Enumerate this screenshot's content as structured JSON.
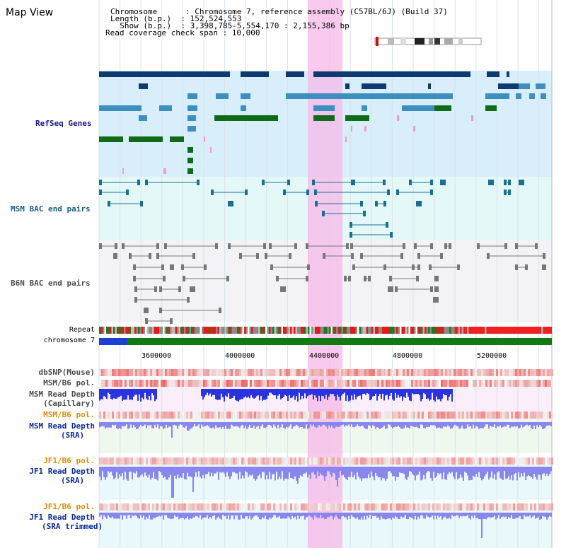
{
  "app": {
    "title": "Map View"
  },
  "info": {
    "line1": "Chromosome      : Chromosome 7, reference assembly (C57BL/6J) (Build 37)",
    "line2": "Length (b.p.)  : 152,524,553",
    "line3": "  Show (b.p.)  : 3,398,785-5,554,170 : 2,155,386 bp",
    "line4": "Read coverage check span : 10,000"
  },
  "tracks": {
    "refseq": "RefSeq Genes",
    "msm_bac": "MSM BAC end pairs",
    "b6n_bac": "B6N BAC end pairs",
    "repeat": "Repeat",
    "chromosome": "chromosome 7",
    "dbsnp": "dbSNP(Mouse)",
    "msm_b6_pol_1": "MSM/B6 pol.",
    "msm_depth_cap_1": "MSM Read Depth",
    "msm_depth_cap_2": "(Capillary)",
    "msm_b6_pol_2": "MSM/B6 pol.",
    "msm_depth_sra_1": "MSM Read Depth",
    "msm_depth_sra_2": "(SRA)",
    "jf1_pol_1": "JF1/B6 pol.",
    "jf1_depth_1": "JF1 Read Depth",
    "jf1_depth_2": "(SRA)",
    "jf1_pol_2": "JF1/B6 pol.",
    "jf1_trim_1": "JF1 Read Depth",
    "jf1_trim_2": "(SRA trimmed)"
  },
  "ruler": {
    "ticks": [
      "3600000",
      "4000000",
      "4400000",
      "4800000",
      "5200000"
    ]
  },
  "colors": {
    "highlight": "#f7b8e8",
    "refseq_bg": "#d8eefa",
    "msm_bac_bg": "#e4f8f8",
    "b6n_bac_bg": "#f3f3f5",
    "gene_dark": "#0f3a6e",
    "gene_mid": "#3d8fbf",
    "gene_green": "#0f6b17",
    "gene_pink": "#f59bc0",
    "msm_pair": "#1b6f93",
    "b6n_pair": "#777777",
    "chrom_blue": "#1e3fd6",
    "chrom_green": "#137a13",
    "depth_capillary": "#2a33e0",
    "depth_sra": "#8a86ee",
    "pol_red": "#f35050"
  }
}
